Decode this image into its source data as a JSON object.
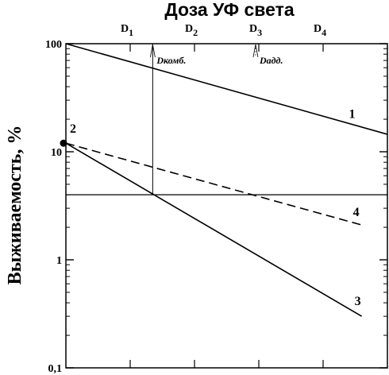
{
  "chart_data": {
    "type": "line",
    "title": "Доза УФ света",
    "ylabel": "Выживаемость, %",
    "yscale": "log",
    "ylim": [
      0.1,
      100
    ],
    "yticks": [
      {
        "value": 100,
        "label": "100"
      },
      {
        "value": 10,
        "label": "10"
      },
      {
        "value": 1,
        "label": "1"
      },
      {
        "value": 0.1,
        "label": "0,1"
      }
    ],
    "xlim": [
      0,
      5
    ],
    "xticks": [
      {
        "value": 1,
        "label": "D",
        "sub": "1"
      },
      {
        "value": 2,
        "label": "D",
        "sub": "2"
      },
      {
        "value": 3,
        "label": "D",
        "sub": "3"
      },
      {
        "value": 4,
        "label": "D",
        "sub": "4"
      }
    ],
    "series": [
      {
        "name": "1",
        "style": "solid",
        "x": [
          0,
          5
        ],
        "y": [
          100,
          14.5
        ]
      },
      {
        "name": "4",
        "style": "dashed",
        "x": [
          0,
          4.6
        ],
        "y": [
          12,
          2.1
        ]
      },
      {
        "name": "3",
        "style": "solid",
        "x": [
          0,
          4.6
        ],
        "y": [
          12,
          0.3
        ]
      }
    ],
    "point": {
      "label": "2",
      "x": 0,
      "y": 12
    },
    "reference_lines": {
      "horizontal_y": 4,
      "vertical": {
        "x": 1.35,
        "y_from": 4,
        "y_to": 100
      }
    },
    "annotations": [
      {
        "text": "Dкомб.",
        "x": 1.35
      },
      {
        "text": "Dадд.",
        "x": 2.95
      }
    ],
    "grid": false
  }
}
